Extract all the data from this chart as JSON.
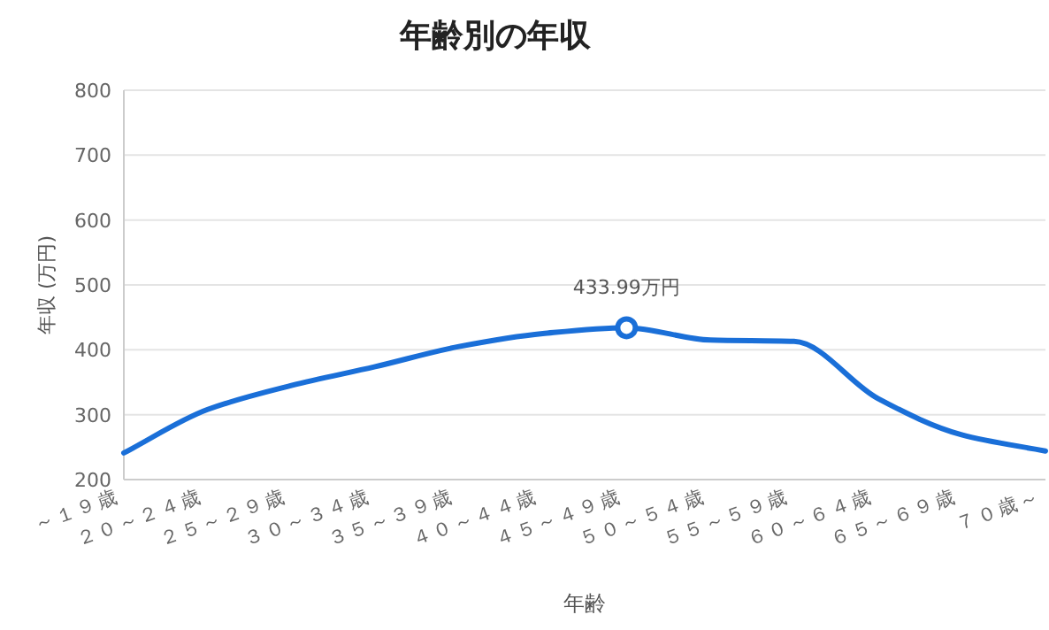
{
  "chart_data": {
    "type": "line",
    "title": "年齢別の年収",
    "xlabel": "年齢",
    "ylabel": "年収 (万円)",
    "categories": [
      "～１９歳",
      "２０～２４歳",
      "２５～２９歳",
      "３０～３４歳",
      "３５～３９歳",
      "４０～４４歳",
      "４５～４９歳",
      "５０～５４歳",
      "５５～５９歳",
      "６０～６４歳",
      "６５～６９歳",
      "７０歳～"
    ],
    "series": [
      {
        "color": "#1a6fd8",
        "values": [
          241,
          308,
          345,
          374,
          405,
          425,
          433.99,
          415,
          413,
          325,
          269,
          244
        ]
      }
    ],
    "ylim": [
      200,
      800
    ],
    "yticks": [
      200,
      300,
      400,
      500,
      600,
      700,
      800
    ],
    "grid": "y",
    "marker": "none",
    "line_style": "solid",
    "annotations": [
      {
        "text": "433.99万円",
        "x": "４５～４９歳",
        "y": 433.99
      }
    ]
  }
}
